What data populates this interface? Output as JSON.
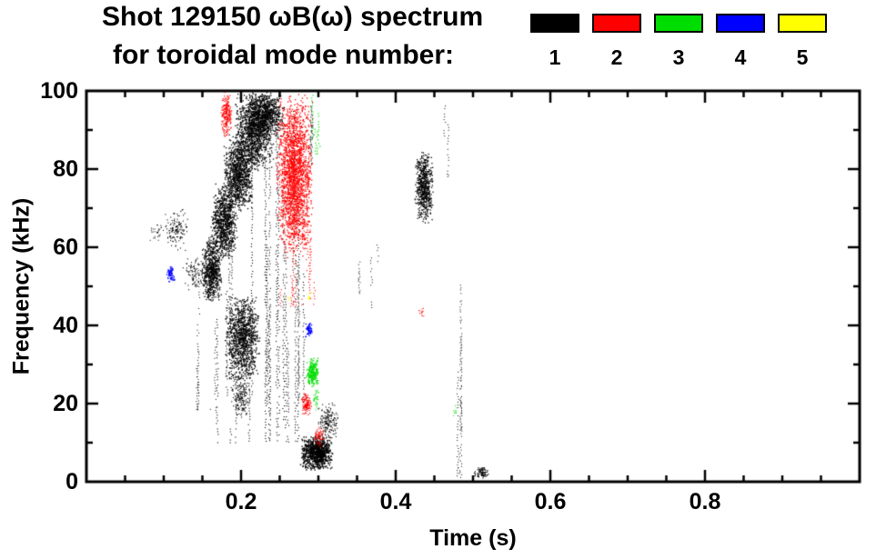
{
  "chart_data": {
    "type": "scatter",
    "title": "Shot 129150 ωB(ω) spectrum",
    "subtitle": "for toroidal mode number:",
    "xlabel": "Time (s)",
    "ylabel": "Frequency (kHz)",
    "xlim": [
      0.0,
      1.0
    ],
    "ylim": [
      0,
      100
    ],
    "grid": false,
    "legend_position": "top-right",
    "x_major_ticks": [
      {
        "v": 0.2,
        "label": "0.2"
      },
      {
        "v": 0.4,
        "label": "0.4"
      },
      {
        "v": 0.6,
        "label": "0.6"
      },
      {
        "v": 0.8,
        "label": "0.8"
      }
    ],
    "x_minor_step": 0.05,
    "y_major_ticks": [
      {
        "v": 0,
        "label": "0"
      },
      {
        "v": 20,
        "label": "20"
      },
      {
        "v": 40,
        "label": "40"
      },
      {
        "v": 60,
        "label": "60"
      },
      {
        "v": 80,
        "label": "80"
      },
      {
        "v": 100,
        "label": "100"
      }
    ],
    "y_minor_step": 10,
    "series": [
      {
        "name": "n1",
        "label": "1",
        "color": "#000000",
        "clusters": [
          {
            "type": "blob",
            "t": [
              0.148,
              0.176
            ],
            "f": [
              46,
              63
            ],
            "n": 700,
            "s": 1.3
          },
          {
            "type": "blob",
            "t": [
              0.16,
              0.196
            ],
            "f": [
              57,
              77
            ],
            "n": 900,
            "s": 1.3
          },
          {
            "type": "blob",
            "t": [
              0.176,
              0.216
            ],
            "f": [
              69,
              89
            ],
            "n": 1000,
            "s": 1.3
          },
          {
            "type": "blob",
            "t": [
              0.19,
              0.242
            ],
            "f": [
              79,
              100
            ],
            "n": 1200,
            "s": 1.3
          },
          {
            "type": "blob",
            "t": [
              0.206,
              0.256
            ],
            "f": [
              88,
              100
            ],
            "n": 800,
            "s": 1.3
          },
          {
            "type": "streaks",
            "t": [
              0.168,
              0.282
            ],
            "f": [
              10,
              100
            ],
            "ns": 26,
            "s": 1.1
          },
          {
            "type": "streaks",
            "t": [
              0.14,
              0.17
            ],
            "f": [
              18,
              58
            ],
            "ns": 7,
            "s": 1.0
          },
          {
            "type": "blob",
            "t": [
              0.178,
              0.224
            ],
            "f": [
              26,
              48
            ],
            "n": 1100,
            "s": 1.3
          },
          {
            "type": "blob",
            "t": [
              0.186,
              0.212
            ],
            "f": [
              16,
              28
            ],
            "n": 200,
            "s": 1.1
          },
          {
            "type": "blob",
            "t": [
              0.276,
              0.318
            ],
            "f": [
              3,
              12
            ],
            "n": 900,
            "s": 1.4
          },
          {
            "type": "blob",
            "t": [
              0.298,
              0.326
            ],
            "f": [
              10,
              21
            ],
            "n": 180,
            "s": 1.1
          },
          {
            "type": "streaks",
            "t": [
              0.352,
              0.38
            ],
            "f": [
              44,
              62
            ],
            "ns": 5,
            "s": 1.0
          },
          {
            "type": "blob",
            "t": [
              0.423,
              0.449
            ],
            "f": [
              66,
              85
            ],
            "n": 600,
            "s": 1.3
          },
          {
            "type": "streaks",
            "t": [
              0.46,
              0.472
            ],
            "f": [
              78,
              97
            ],
            "ns": 3,
            "s": 1.0
          },
          {
            "type": "streaks",
            "t": [
              0.472,
              0.484
            ],
            "f": [
              1,
              56
            ],
            "ns": 5,
            "s": 1.0
          },
          {
            "type": "blob",
            "t": [
              0.499,
              0.521
            ],
            "f": [
              1,
              4
            ],
            "n": 80,
            "s": 1.2
          },
          {
            "type": "blob",
            "t": [
              0.1,
              0.132
            ],
            "f": [
              59,
              70
            ],
            "n": 140,
            "s": 1.1
          },
          {
            "type": "blob",
            "t": [
              0.124,
              0.152
            ],
            "f": [
              49,
              58
            ],
            "n": 90,
            "s": 1.1
          },
          {
            "type": "streaks",
            "t": [
              0.288,
              0.312
            ],
            "f": [
              80,
              100
            ],
            "ns": 4,
            "s": 1.1
          },
          {
            "type": "blob",
            "t": [
              0.08,
              0.1
            ],
            "f": [
              61,
              67
            ],
            "n": 30,
            "s": 1.0
          }
        ]
      },
      {
        "name": "n2",
        "label": "2",
        "color": "#ff0000",
        "clusters": [
          {
            "type": "blob",
            "t": [
              0.244,
              0.292
            ],
            "f": [
              57,
              100
            ],
            "n": 2000,
            "s": 1.3
          },
          {
            "type": "streaks",
            "t": [
              0.24,
              0.296
            ],
            "f": [
              45,
              100
            ],
            "ns": 12,
            "s": 1.1
          },
          {
            "type": "blob",
            "t": [
              0.173,
              0.188
            ],
            "f": [
              88,
              100
            ],
            "n": 220,
            "s": 1.2
          },
          {
            "type": "blob",
            "t": [
              0.276,
              0.291
            ],
            "f": [
              17,
              23
            ],
            "n": 110,
            "s": 1.2
          },
          {
            "type": "blob",
            "t": [
              0.294,
              0.308
            ],
            "f": [
              8,
              15
            ],
            "n": 70,
            "s": 1.1
          },
          {
            "type": "blob",
            "t": [
              0.429,
              0.437
            ],
            "f": [
              42,
              45
            ],
            "n": 14,
            "s": 1.0
          }
        ]
      },
      {
        "name": "n3",
        "label": "3",
        "color": "#00dd00",
        "clusters": [
          {
            "type": "streaks",
            "t": [
              0.291,
              0.303
            ],
            "f": [
              84,
              100
            ],
            "ns": 4,
            "s": 1.2
          },
          {
            "type": "blob",
            "t": [
              0.283,
              0.3
            ],
            "f": [
              24,
              32
            ],
            "n": 240,
            "s": 1.3
          },
          {
            "type": "blob",
            "t": [
              0.292,
              0.301
            ],
            "f": [
              18,
              24
            ],
            "n": 40,
            "s": 1.0
          },
          {
            "type": "blob",
            "t": [
              0.473,
              0.48
            ],
            "f": [
              17,
              20
            ],
            "n": 10,
            "s": 1.0
          }
        ]
      },
      {
        "name": "n4",
        "label": "4",
        "color": "#0000ff",
        "clusters": [
          {
            "type": "blob",
            "t": [
              0.103,
              0.114
            ],
            "f": [
              51,
              56
            ],
            "n": 70,
            "s": 1.3
          },
          {
            "type": "blob",
            "t": [
              0.282,
              0.292
            ],
            "f": [
              37,
              41
            ],
            "n": 60,
            "s": 1.3
          }
        ]
      },
      {
        "name": "n5",
        "label": "5",
        "color": "#ffff00",
        "clusters": [
          {
            "type": "blob",
            "t": [
              0.284,
              0.291
            ],
            "f": [
              46,
              49
            ],
            "n": 10,
            "s": 1.2
          },
          {
            "type": "blob",
            "t": [
              0.258,
              0.264
            ],
            "f": [
              46,
              48
            ],
            "n": 5,
            "s": 1.0
          }
        ]
      }
    ]
  }
}
